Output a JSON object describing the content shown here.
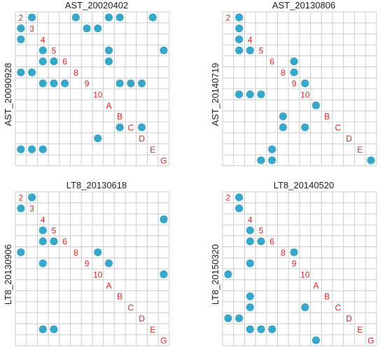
{
  "colors": {
    "grid": "#cccccc",
    "dot": "#3aa6c8",
    "label": "#cc2a2a",
    "text": "#222222"
  },
  "chart_data": [
    {
      "type": "scatter",
      "title": "AST_20020402",
      "ylabel": "AST_20090928",
      "diag_labels": [
        "2",
        "3",
        "4",
        "5",
        "6",
        "8",
        "9",
        "10",
        "A",
        "B",
        "C",
        "D",
        "E",
        "G"
      ],
      "grid": true,
      "points": [
        [
          1,
          0
        ],
        [
          5,
          0
        ],
        [
          8,
          0
        ],
        [
          9,
          0
        ],
        [
          12,
          0
        ],
        [
          0,
          1
        ],
        [
          6,
          1
        ],
        [
          7,
          1
        ],
        [
          0,
          2
        ],
        [
          2,
          3
        ],
        [
          8,
          3
        ],
        [
          13,
          3
        ],
        [
          2,
          4
        ],
        [
          3,
          4
        ],
        [
          8,
          4
        ],
        [
          0,
          5
        ],
        [
          1,
          5
        ],
        [
          2,
          6
        ],
        [
          3,
          6
        ],
        [
          4,
          6
        ],
        [
          9,
          6
        ],
        [
          10,
          6
        ],
        [
          11,
          6
        ],
        [
          9,
          10
        ],
        [
          11,
          10
        ],
        [
          7,
          11
        ],
        [
          0,
          12
        ],
        [
          1,
          12
        ],
        [
          2,
          12
        ]
      ]
    },
    {
      "type": "scatter",
      "title": "AST_20130806",
      "ylabel": "AST_20140719",
      "diag_labels": [
        "2",
        "3",
        "4",
        "5",
        "6",
        "8",
        "9",
        "10",
        "A",
        "B",
        "C",
        "D",
        "E",
        "G"
      ],
      "grid": true,
      "points": [
        [
          1,
          0
        ],
        [
          1,
          1
        ],
        [
          1,
          2
        ],
        [
          1,
          3
        ],
        [
          2,
          3
        ],
        [
          6,
          4
        ],
        [
          6,
          5
        ],
        [
          7,
          6
        ],
        [
          1,
          7
        ],
        [
          2,
          7
        ],
        [
          3,
          7
        ],
        [
          8,
          8
        ],
        [
          5,
          9
        ],
        [
          5,
          10
        ],
        [
          7,
          10
        ],
        [
          4,
          12
        ],
        [
          3,
          13
        ],
        [
          4,
          13
        ],
        [
          13,
          13
        ]
      ]
    },
    {
      "type": "scatter",
      "title": "LT8_20130618",
      "ylabel": "LT8_20130906",
      "diag_labels": [
        "2",
        "3",
        "4",
        "5",
        "6",
        "8",
        "9",
        "10",
        "A",
        "B",
        "C",
        "D",
        "E",
        "G"
      ],
      "grid": true,
      "points": [
        [
          1,
          0
        ],
        [
          0,
          1
        ],
        [
          13,
          2
        ],
        [
          2,
          3
        ],
        [
          2,
          4
        ],
        [
          3,
          4
        ],
        [
          0,
          5
        ],
        [
          7,
          5
        ],
        [
          2,
          6
        ],
        [
          8,
          6
        ],
        [
          13,
          7
        ],
        [
          2,
          12
        ],
        [
          3,
          12
        ]
      ]
    },
    {
      "type": "scatter",
      "title": "LT8_20140520",
      "ylabel": "LT8_20150320",
      "diag_labels": [
        "2",
        "3",
        "4",
        "5",
        "6",
        "8",
        "9",
        "10",
        "A",
        "B",
        "C",
        "D",
        "E",
        "G"
      ],
      "grid": true,
      "points": [
        [
          1,
          0
        ],
        [
          1,
          1
        ],
        [
          2,
          3
        ],
        [
          2,
          4
        ],
        [
          3,
          4
        ],
        [
          6,
          5
        ],
        [
          2,
          6
        ],
        [
          0,
          7
        ],
        [
          2,
          9
        ],
        [
          2,
          10
        ],
        [
          7,
          10
        ],
        [
          0,
          11
        ],
        [
          1,
          11
        ],
        [
          2,
          12
        ],
        [
          3,
          12
        ],
        [
          4,
          12
        ],
        [
          8,
          13
        ]
      ]
    }
  ]
}
